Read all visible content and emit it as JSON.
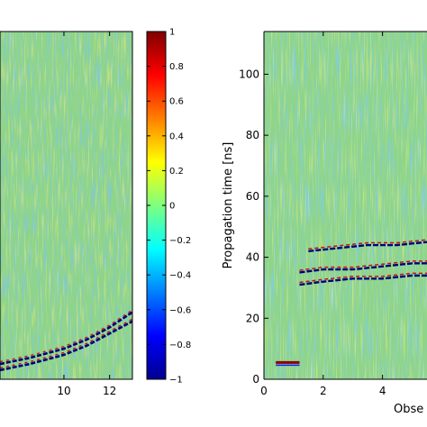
{
  "chart_data": [
    {
      "type": "heatmap",
      "panel": "left",
      "title": "",
      "xlabel": "",
      "ylabel": "",
      "x_ticks": [
        "10",
        "12"
      ],
      "y_ticks": [],
      "xlim": [
        7.2,
        13
      ],
      "features": [
        {
          "name": "reflection",
          "x": [
            7.2,
            8.5,
            10,
            11,
            12,
            13
          ],
          "y": [
            5,
            7,
            10,
            13,
            17,
            22
          ]
        },
        {
          "name": "reflection",
          "x": [
            7.2,
            8.5,
            10,
            11,
            12,
            13
          ],
          "y": [
            3,
            5,
            8,
            11,
            15,
            19
          ]
        }
      ]
    },
    {
      "type": "heatmap",
      "panel": "right",
      "title": "",
      "xlabel": "Obse",
      "ylabel": "Propagation time [ns]",
      "x_ticks": [
        "0",
        "2",
        "4"
      ],
      "y_ticks": [
        "0",
        "20",
        "40",
        "60",
        "80",
        "100"
      ],
      "xlim": [
        0,
        5.5
      ],
      "ylim": [
        0,
        114
      ],
      "features": [
        {
          "name": "surface-wave",
          "x": [
            0.4,
            1.2
          ],
          "y": [
            5.5,
            5.5
          ]
        },
        {
          "name": "reflection",
          "x": [
            1.2,
            2,
            3,
            4,
            5,
            5.5
          ],
          "y": [
            31,
            32,
            33,
            33,
            34,
            34
          ]
        },
        {
          "name": "reflection",
          "x": [
            1.2,
            2,
            3,
            4,
            5,
            5.5
          ],
          "y": [
            35,
            36,
            36,
            37,
            38,
            38
          ]
        },
        {
          "name": "reflection",
          "x": [
            1.5,
            2.5,
            3.5,
            4.5,
            5.5
          ],
          "y": [
            42,
            43,
            44,
            44,
            45
          ]
        }
      ]
    }
  ],
  "colorbar": {
    "min": -1,
    "max": 1,
    "ticks": [
      "1",
      "0.8",
      "0.6",
      "0.4",
      "0.2",
      "0",
      "−0.2",
      "−0.4",
      "−0.6",
      "−0.8",
      "−1"
    ]
  }
}
